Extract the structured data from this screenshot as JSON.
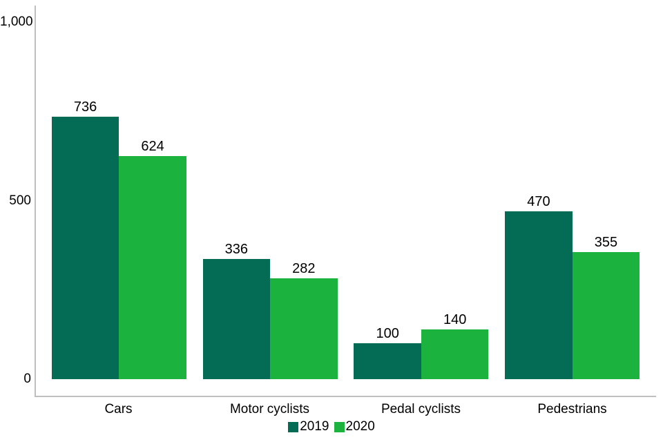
{
  "chart_data": {
    "type": "bar",
    "title": "",
    "xlabel": "",
    "ylabel": "",
    "categories": [
      "Cars",
      "Motor cyclists",
      "Pedal cyclists",
      "Pedestrians"
    ],
    "series": [
      {
        "name": "2019",
        "color": "#046b55",
        "values": [
          736,
          336,
          100,
          470
        ]
      },
      {
        "name": "2020",
        "color": "#1cb23e",
        "values": [
          624,
          282,
          140,
          355
        ]
      }
    ],
    "ylim": [
      0,
      1000
    ],
    "yticks": [
      0,
      500,
      1000
    ],
    "ytick_labels": [
      "0",
      "500",
      "1,000"
    ],
    "grid": false,
    "value_labels": true,
    "legend_position": "bottom-center"
  },
  "axis": {
    "line_color": "#bfbfbf",
    "text_color": "#000000"
  },
  "legend": {
    "items": [
      {
        "label": "2019",
        "color": "#046b55"
      },
      {
        "label": "2020",
        "color": "#1cb23e"
      }
    ]
  }
}
